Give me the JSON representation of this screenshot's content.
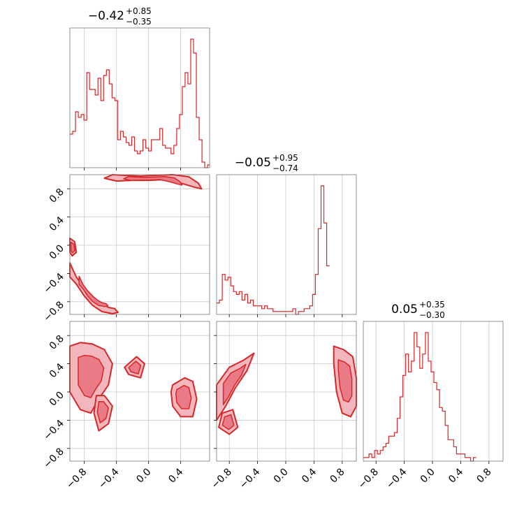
{
  "chart_data": {
    "type": "corner",
    "color": "#d62728",
    "fill_light": "#f4b6bd",
    "fill_mid": "#e97a86",
    "grid": true,
    "titles": [
      {
        "value": "−0.42",
        "plus": "+0.85",
        "minus": "−0.35"
      },
      {
        "value": "−0.05",
        "plus": "+0.95",
        "minus": "−0.74"
      },
      {
        "value": "0.05",
        "plus": "+0.35",
        "minus": "−0.30"
      }
    ],
    "ticks": [
      -0.8,
      -0.4,
      0.0,
      0.4,
      0.8
    ],
    "tick_labels": [
      "−0.8",
      "−0.4",
      "0.0",
      "0.4",
      "0.8"
    ],
    "ranges": [
      [
        -0.98,
        0.76
      ],
      [
        -0.98,
        1.0
      ],
      [
        -0.98,
        1.0
      ]
    ],
    "histograms": [
      {
        "edges_start": -0.98,
        "bin_width": 0.035,
        "counts": [
          12,
          13,
          20,
          18,
          19,
          17,
          34,
          28,
          28,
          26,
          32,
          24,
          33,
          35,
          30,
          25,
          24,
          10,
          13,
          11,
          9,
          8,
          11,
          6,
          5,
          6,
          10,
          7,
          6,
          10,
          10,
          10,
          14,
          8,
          7,
          7,
          5,
          8,
          14,
          19,
          29,
          34,
          30,
          46,
          41,
          18,
          10,
          2,
          0,
          1
        ]
      },
      {
        "edges_start": -0.98,
        "bin_width": 0.04,
        "counts": [
          4,
          5,
          14,
          12,
          13,
          10,
          8,
          7,
          8,
          5,
          7,
          4,
          5,
          3,
          3,
          3,
          2,
          3,
          2,
          2,
          1,
          1,
          1,
          1,
          1,
          1,
          1,
          2,
          0,
          1,
          1,
          2,
          2,
          3,
          7,
          14,
          30,
          45,
          32,
          17
        ]
      },
      {
        "edges_start": -0.98,
        "bin_width": 0.04,
        "counts": [
          1,
          1,
          2,
          1,
          3,
          2,
          3,
          4,
          5,
          7,
          7,
          8,
          12,
          18,
          24,
          30,
          25,
          28,
          36,
          32,
          26,
          30,
          36,
          28,
          25,
          22,
          20,
          15,
          14,
          10,
          6,
          6,
          4,
          2,
          2,
          2,
          1,
          1,
          0,
          1
        ]
      }
    ],
    "scatter_2d": [
      {
        "pair": "x2 vs x1",
        "contours": [
          {
            "x": [
              -0.55,
              -0.45,
              -0.3,
              -0.1,
              0.1,
              0.3,
              0.5,
              0.62,
              0.66,
              0.58,
              0.4,
              0.2,
              0.0,
              -0.2,
              -0.4,
              -0.55
            ],
            "y": [
              0.95,
              1.0,
              0.99,
              0.98,
              0.99,
              1.0,
              0.97,
              0.88,
              0.8,
              0.82,
              0.88,
              0.93,
              0.92,
              0.92,
              0.91,
              0.95
            ]
          },
          {
            "x": [
              -0.98,
              -0.9,
              -0.8,
              -0.7,
              -0.6,
              -0.5,
              -0.42,
              -0.38,
              -0.45,
              -0.58,
              -0.7,
              -0.8,
              -0.9,
              -0.98
            ],
            "y": [
              -0.25,
              -0.45,
              -0.6,
              -0.72,
              -0.82,
              -0.88,
              -0.9,
              -0.95,
              -0.97,
              -0.94,
              -0.85,
              -0.72,
              -0.55,
              -0.45
            ]
          },
          {
            "x": [
              -0.98,
              -0.92,
              -0.9,
              -0.95,
              -0.98
            ],
            "y": [
              0.1,
              0.05,
              -0.1,
              -0.15,
              -0.1
            ]
          }
        ]
      },
      {
        "pair": "x3 vs x1",
        "contours": [
          {
            "x": [
              -0.98,
              -0.85,
              -0.7,
              -0.55,
              -0.45,
              -0.5,
              -0.62,
              -0.72,
              -0.85,
              -0.98
            ],
            "y": [
              0.65,
              0.7,
              0.68,
              0.6,
              0.4,
              0.1,
              -0.1,
              -0.3,
              -0.25,
              0.0
            ]
          },
          {
            "x": [
              -0.65,
              -0.55,
              -0.45,
              -0.5,
              -0.62,
              -0.68
            ],
            "y": [
              -0.05,
              -0.05,
              -0.2,
              -0.45,
              -0.55,
              -0.3
            ]
          },
          {
            "x": [
              0.3,
              0.45,
              0.55,
              0.6,
              0.55,
              0.4,
              0.3,
              0.28
            ],
            "y": [
              0.1,
              0.2,
              0.15,
              -0.1,
              -0.35,
              -0.35,
              -0.2,
              0.0
            ]
          },
          {
            "x": [
              -0.3,
              -0.15,
              -0.05,
              -0.1,
              -0.25
            ],
            "y": [
              0.35,
              0.5,
              0.4,
              0.2,
              0.25
            ]
          }
        ]
      },
      {
        "pair": "x3 vs x2",
        "contours": [
          {
            "x": [
              -0.98,
              -0.8,
              -0.6,
              -0.45,
              -0.55,
              -0.72,
              -0.85,
              -0.98
            ],
            "y": [
              0.1,
              0.35,
              0.45,
              0.55,
              0.3,
              0.05,
              -0.2,
              -0.4
            ]
          },
          {
            "x": [
              -0.9,
              -0.75,
              -0.68,
              -0.8,
              -0.95
            ],
            "y": [
              -0.3,
              -0.25,
              -0.5,
              -0.6,
              -0.5
            ]
          },
          {
            "x": [
              0.68,
              0.82,
              0.95,
              1.0,
              1.0,
              0.92,
              0.8,
              0.72,
              0.68
            ],
            "y": [
              0.65,
              0.6,
              0.5,
              0.2,
              -0.2,
              -0.35,
              -0.3,
              0.0,
              0.4
            ]
          }
        ]
      }
    ]
  }
}
